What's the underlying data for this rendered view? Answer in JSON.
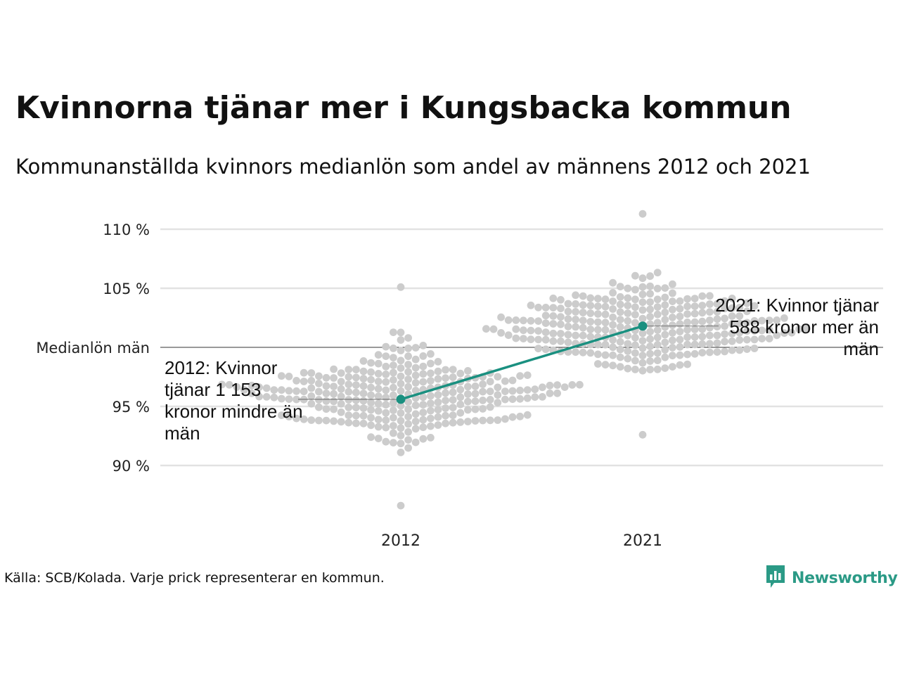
{
  "chart_data": {
    "type": "scatter",
    "title": "Kvinnorna tjänar mer i Kungsbacka kommun",
    "subtitle": "Kommunanställda kvinnors medianlön som andel av männens 2012 och 2021",
    "categories": [
      "2012",
      "2021"
    ],
    "y_ticks": [
      {
        "value": 90,
        "label": "90 %"
      },
      {
        "value": 95,
        "label": "95 %"
      },
      {
        "value": 100,
        "label": "Medianlön män"
      },
      {
        "value": 105,
        "label": "105 %"
      },
      {
        "value": 110,
        "label": "110 %"
      }
    ],
    "ylim": [
      86,
      111.5
    ],
    "grid": true,
    "reference_line": {
      "value": 100
    },
    "highlight": {
      "name": "Kungsbacka",
      "color": "#1a9080",
      "values": [
        95.6,
        101.8
      ]
    },
    "annotations": [
      {
        "year": "2012",
        "text": "2012: Kvinnor tjänar 1 153 kronor mindre än män"
      },
      {
        "year": "2021",
        "text": "2021: Kvinnor tjänar 588 kronor mer än män"
      }
    ],
    "dot_color": "#cccccc",
    "distribution": [
      {
        "category": "2012",
        "n": 290,
        "min": 86.6,
        "max": 105.1,
        "center": 96.0,
        "spread": 2.7
      },
      {
        "category": "2021",
        "n": 290,
        "min": 92.6,
        "max": 111.3,
        "center": 101.6,
        "spread": 2.6
      }
    ]
  },
  "footer": {
    "source": "Källa: SCB/Kolada. Varje prick representerar en kommun.",
    "brand": "Newsworthy",
    "brand_icon": "bar-chart-icon",
    "brand_color": "#2b9a86"
  }
}
